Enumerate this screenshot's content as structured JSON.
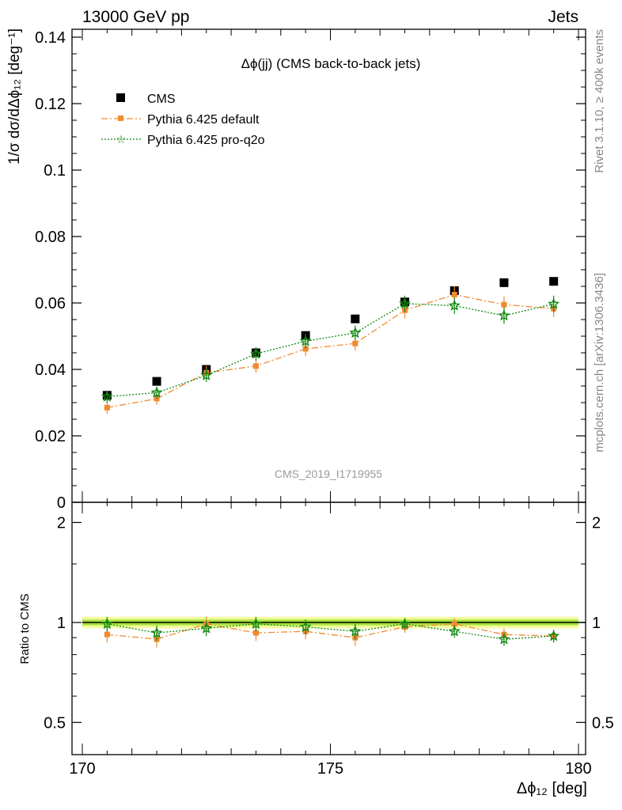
{
  "header": {
    "left": "13000 GeV pp",
    "right": "Jets"
  },
  "side": {
    "rivet": "Rivet 3.1.10, ≥ 400k events",
    "mcplots": "mcplots.cern.ch [arXiv:1306.3436]"
  },
  "plot_title": "Δϕ(jj) (CMS back-to-back jets)",
  "analysis_id": "CMS_2019_I1719955",
  "y_axis_title": "1/σ dσ/dΔϕ₁₂ [deg⁻¹]",
  "ratio_axis_title": "Ratio to CMS",
  "x_axis_title": "Δϕ₁₂ [deg]",
  "colors": {
    "data": "#000000",
    "pythia_default": "#f08a30",
    "pythia_proq2o": "#118811",
    "band_inner": "#a6e23c",
    "band_outer": "#f4fba0"
  },
  "chart_data": [
    {
      "type": "scatter",
      "name": "main",
      "xlim": [
        170,
        180
      ],
      "ylim": [
        0,
        0.14
      ],
      "yticks": [
        0,
        0.02,
        0.04,
        0.06,
        0.08,
        0.1,
        0.12,
        0.14
      ],
      "ytick_labels": [
        "0",
        "0.02",
        "0.04",
        "0.06",
        "0.08",
        "0.1",
        "0.12",
        "0.14"
      ],
      "x": [
        170.5,
        171.5,
        172.5,
        173.5,
        174.5,
        175.5,
        176.5,
        177.5,
        178.5,
        179.5
      ],
      "legend": [
        "CMS",
        "Pythia 6.425 default",
        "Pythia 6.425 pro-q2o"
      ],
      "legend_position": "top-left",
      "series": [
        {
          "name": "CMS",
          "marker": "square",
          "values": [
            0.0322,
            0.0364,
            0.04,
            0.045,
            0.0502,
            0.0552,
            0.0603,
            0.0637,
            0.0661,
            0.0665
          ],
          "errors": [
            0.0005,
            0.0005,
            0.0005,
            0.0006,
            0.0006,
            0.0006,
            0.0007,
            0.0007,
            0.0007,
            0.0007
          ]
        },
        {
          "name": "Pythia 6.425 default",
          "marker": "square-small",
          "line": "dashdot",
          "values": [
            0.0285,
            0.0312,
            0.039,
            0.041,
            0.0462,
            0.0478,
            0.0578,
            0.0625,
            0.0595,
            0.0583
          ],
          "errors": [
            0.0018,
            0.0018,
            0.002,
            0.002,
            0.0022,
            0.0022,
            0.0024,
            0.0025,
            0.0025,
            0.0025
          ]
        },
        {
          "name": "Pythia 6.425 pro-q2o",
          "marker": "star",
          "line": "dotted",
          "values": [
            0.0318,
            0.033,
            0.0382,
            0.0447,
            0.0485,
            0.051,
            0.0598,
            0.0592,
            0.0562,
            0.0597
          ],
          "errors": [
            0.0018,
            0.0018,
            0.002,
            0.002,
            0.0022,
            0.0022,
            0.0024,
            0.0025,
            0.0025,
            0.0025
          ]
        }
      ]
    },
    {
      "type": "scatter",
      "name": "ratio",
      "xlim": [
        170,
        180
      ],
      "ylim": [
        0.4,
        2.3
      ],
      "log_y": true,
      "yticks": [
        0.5,
        1,
        2
      ],
      "ytick_labels": [
        "0.5",
        "1",
        "2"
      ],
      "xticks": [
        170,
        175,
        180
      ],
      "xtick_labels": [
        "170",
        "175",
        "180"
      ],
      "x": [
        170.5,
        171.5,
        172.5,
        173.5,
        174.5,
        175.5,
        176.5,
        177.5,
        178.5,
        179.5
      ],
      "reference_band": {
        "inner": [
          0.98,
          1.02
        ],
        "outer": [
          0.96,
          1.04
        ]
      },
      "series": [
        {
          "name": "Pythia 6.425 default",
          "values": [
            0.92,
            0.89,
            0.99,
            0.93,
            0.94,
            0.9,
            0.97,
            0.99,
            0.92,
            0.91
          ],
          "errors": [
            0.05,
            0.05,
            0.05,
            0.05,
            0.05,
            0.05,
            0.04,
            0.04,
            0.04,
            0.04
          ]
        },
        {
          "name": "Pythia 6.425 pro-q2o",
          "values": [
            0.99,
            0.93,
            0.96,
            0.99,
            0.97,
            0.94,
            0.99,
            0.94,
            0.89,
            0.91
          ],
          "errors": [
            0.05,
            0.05,
            0.05,
            0.05,
            0.05,
            0.05,
            0.04,
            0.04,
            0.04,
            0.04
          ]
        }
      ]
    }
  ]
}
